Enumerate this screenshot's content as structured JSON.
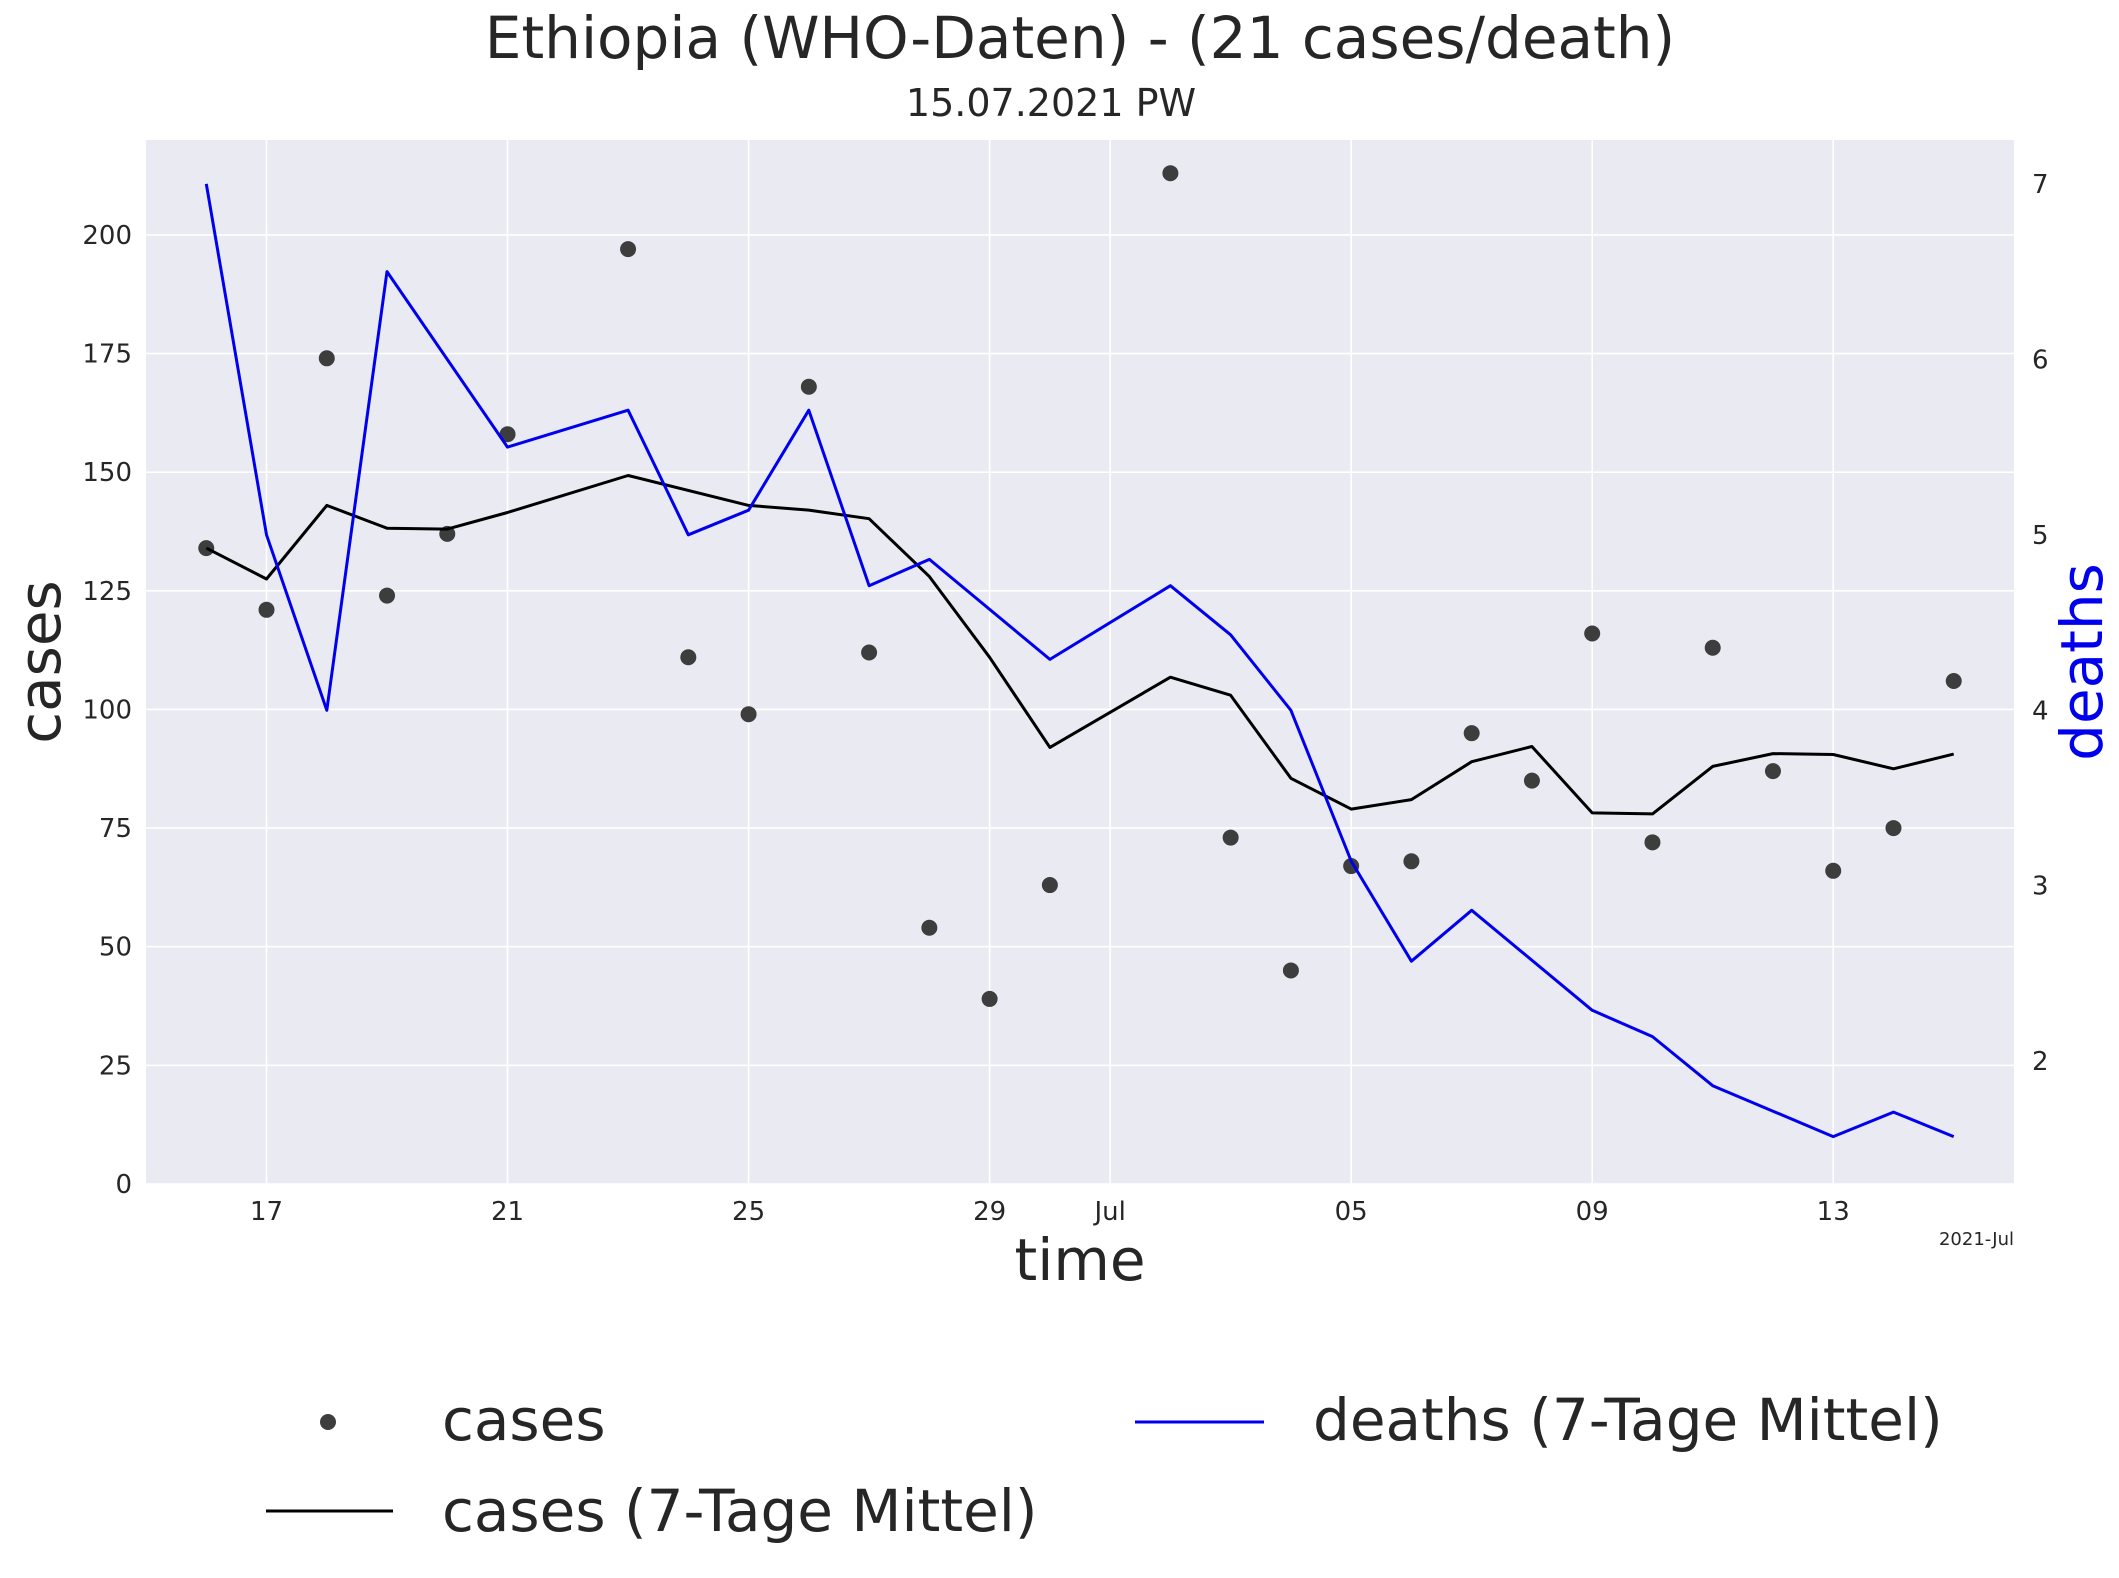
{
  "chart_data": {
    "type": "line",
    "title": "Ethiopia (WHO-Daten) - (21 cases/death)",
    "subtitle": "15.07.2021 PW",
    "xlabel": "time",
    "ylabel": "cases",
    "y2label": "deaths",
    "x_corner_label": "2021-Jul",
    "x": [
      "2021-06-16",
      "2021-06-17",
      "2021-06-18",
      "2021-06-19",
      "2021-06-20",
      "2021-06-21",
      "2021-06-22",
      "2021-06-23",
      "2021-06-24",
      "2021-06-25",
      "2021-06-26",
      "2021-06-27",
      "2021-06-28",
      "2021-06-29",
      "2021-06-30",
      "2021-07-01",
      "2021-07-02",
      "2021-07-03",
      "2021-07-04",
      "2021-07-05",
      "2021-07-06",
      "2021-07-07",
      "2021-07-08",
      "2021-07-09",
      "2021-07-10",
      "2021-07-11",
      "2021-07-12",
      "2021-07-13",
      "2021-07-14",
      "2021-07-15"
    ],
    "x_ticks": [
      {
        "date": "2021-06-17",
        "label": "17"
      },
      {
        "date": "2021-06-21",
        "label": "21"
      },
      {
        "date": "2021-06-25",
        "label": "25"
      },
      {
        "date": "2021-06-29",
        "label": "29"
      },
      {
        "date": "2021-07-01",
        "label": "Jul"
      },
      {
        "date": "2021-07-05",
        "label": "05"
      },
      {
        "date": "2021-07-09",
        "label": "09"
      },
      {
        "date": "2021-07-13",
        "label": "13"
      }
    ],
    "xlim": [
      "2021-06-15",
      "2021-07-16"
    ],
    "ylim": [
      0,
      220
    ],
    "yticks": [
      0,
      25,
      50,
      75,
      100,
      125,
      150,
      175,
      200
    ],
    "y2lim": [
      1.3,
      7.25
    ],
    "y2ticks": [
      2,
      3,
      4,
      5,
      6,
      7
    ],
    "series": [
      {
        "name": "cases",
        "kind": "scatter",
        "axis": "left",
        "color": "#3d3d3d",
        "values": [
          134,
          121,
          174,
          124,
          137,
          158,
          null,
          197,
          111,
          99,
          168,
          112,
          54,
          39,
          63,
          null,
          213,
          73,
          45,
          67,
          68,
          95,
          85,
          116,
          72,
          113,
          87,
          66,
          75,
          106
        ]
      },
      {
        "name": "cases (7-Tage Mittel)",
        "kind": "line",
        "axis": "left",
        "color": "#000000",
        "values": [
          134,
          127.5,
          143,
          138.2,
          138,
          141.5,
          null,
          149.3,
          null,
          143,
          142,
          140.2,
          128,
          111,
          92,
          null,
          106.8,
          103,
          85.5,
          79,
          81,
          89,
          92.2,
          78.2,
          78,
          88,
          90.7,
          90.5,
          87.5,
          90.6
        ]
      },
      {
        "name": "deaths (7-Tage Mittel)",
        "kind": "line",
        "axis": "right",
        "color": "#0000ee",
        "values": [
          7,
          5,
          4,
          6.5,
          null,
          5.5,
          null,
          5.71,
          5,
          5.14,
          5.71,
          4.71,
          4.86,
          null,
          4.29,
          null,
          4.71,
          4.43,
          4,
          3.14,
          2.57,
          2.86,
          null,
          2.29,
          2.14,
          1.86,
          null,
          1.57,
          1.71,
          1.57
        ]
      }
    ],
    "legend": "bottom, two columns"
  }
}
